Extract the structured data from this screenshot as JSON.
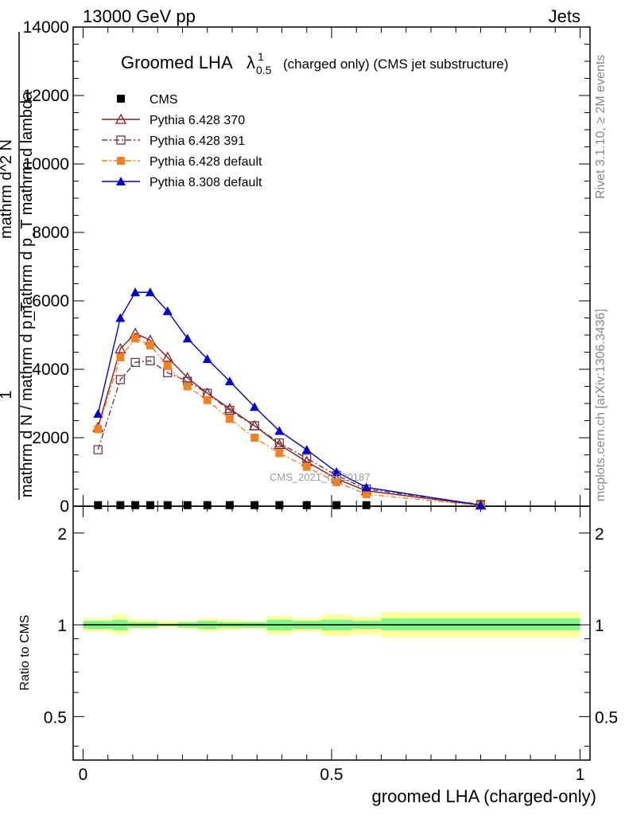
{
  "header": {
    "left": "13000 GeV pp",
    "right": "Jets"
  },
  "title": {
    "main": "Groomed LHA",
    "symbol": "λ",
    "sup": "1",
    "sub": "0.5",
    "detail": "(charged only) (CMS jet substructure)"
  },
  "side_labels": {
    "rivet": "Rivet 3.1.10, ≥ 2M events",
    "mcplots": "mcplots.cern.ch [arXiv:1306.3436]"
  },
  "watermark": "CMS_2021_I1920187",
  "ylabel_main": {
    "numerator_one": "1",
    "denominator": "mathrm d N / mathrm d p_T",
    "fraction_numerator": "mathrm d^2 N",
    "fraction_denominator": "mathrm d p_T mathrm d lambda"
  },
  "ylabel_ratio": "Ratio to CMS",
  "xlabel": "groomed LHA (charged-only)",
  "colors": {
    "cms": "#000000",
    "p370": "#8b1a1a",
    "p391": "#6b3a44",
    "p6def": "#f58020",
    "p8def": "#0000cc",
    "band_inner": "#7ff58a",
    "band_outer": "#ffff99"
  },
  "chart_data": [
    {
      "type": "line",
      "x": [
        0.03,
        0.075,
        0.105,
        0.135,
        0.17,
        0.21,
        0.25,
        0.295,
        0.345,
        0.395,
        0.45,
        0.51,
        0.57,
        0.8
      ],
      "xlim": [
        -0.02,
        1.02
      ],
      "ylim": [
        0,
        14000
      ],
      "yticks": [
        0,
        2000,
        4000,
        6000,
        8000,
        10000,
        12000,
        14000
      ],
      "ytick_labels": [
        "0",
        "2000",
        "4000",
        "6000",
        "8000",
        "10000",
        "12000",
        "14000"
      ],
      "series": [
        {
          "name": "CMS",
          "key": "cms",
          "marker": "square-filled",
          "line": "none",
          "values": [
            30,
            30,
            30,
            30,
            30,
            30,
            30,
            30,
            30,
            30,
            30,
            30,
            30,
            30
          ]
        },
        {
          "name": "Pythia 6.428 370",
          "key": "p370",
          "marker": "triangle-open",
          "line": "solid",
          "values": [
            2300,
            4600,
            5050,
            4850,
            4350,
            3750,
            3300,
            2850,
            2350,
            1800,
            1300,
            800,
            450,
            30
          ]
        },
        {
          "name": "Pythia 6.428 391",
          "key": "p391",
          "marker": "square-open",
          "line": "dashdot",
          "values": [
            1650,
            3700,
            4200,
            4250,
            3900,
            3650,
            3300,
            2800,
            2350,
            1850,
            1400,
            900,
            500,
            50
          ]
        },
        {
          "name": "Pythia 6.428 default",
          "key": "p6def",
          "marker": "square-filled",
          "line": "dashdot",
          "values": [
            2250,
            4350,
            4900,
            4700,
            4100,
            3500,
            3100,
            2550,
            2000,
            1550,
            1150,
            700,
            350,
            20
          ]
        },
        {
          "name": "Pythia 8.308 default",
          "key": "p8def",
          "marker": "triangle-filled",
          "line": "solid",
          "values": [
            2700,
            5500,
            6250,
            6250,
            5700,
            4900,
            4300,
            3650,
            2900,
            2200,
            1650,
            1000,
            550,
            30
          ]
        }
      ]
    },
    {
      "type": "area",
      "ylim": [
        0.36,
        2.45
      ],
      "yticks": [
        0.5,
        1,
        2
      ],
      "ytick_labels": [
        "0.5",
        "1",
        "2"
      ],
      "xticks": [
        0,
        0.5,
        1
      ],
      "xtick_labels": [
        "0",
        "0.5",
        "1"
      ],
      "bins": [
        {
          "lo": 0.0,
          "hi": 0.06,
          "inner": [
            0.97,
            1.03
          ],
          "outer": [
            0.95,
            1.05
          ]
        },
        {
          "lo": 0.06,
          "hi": 0.09,
          "inner": [
            0.96,
            1.04
          ],
          "outer": [
            0.93,
            1.08
          ]
        },
        {
          "lo": 0.09,
          "hi": 0.12,
          "inner": [
            0.98,
            1.02
          ],
          "outer": [
            0.97,
            1.04
          ]
        },
        {
          "lo": 0.12,
          "hi": 0.15,
          "inner": [
            0.98,
            1.02
          ],
          "outer": [
            0.97,
            1.04
          ]
        },
        {
          "lo": 0.15,
          "hi": 0.19,
          "inner": [
            0.99,
            1.01
          ],
          "outer": [
            0.98,
            1.03
          ]
        },
        {
          "lo": 0.19,
          "hi": 0.23,
          "inner": [
            0.98,
            1.02
          ],
          "outer": [
            0.97,
            1.03
          ]
        },
        {
          "lo": 0.23,
          "hi": 0.27,
          "inner": [
            0.97,
            1.03
          ],
          "outer": [
            0.95,
            1.05
          ]
        },
        {
          "lo": 0.27,
          "hi": 0.32,
          "inner": [
            0.98,
            1.02
          ],
          "outer": [
            0.96,
            1.04
          ]
        },
        {
          "lo": 0.32,
          "hi": 0.37,
          "inner": [
            0.98,
            1.02
          ],
          "outer": [
            0.97,
            1.03
          ]
        },
        {
          "lo": 0.37,
          "hi": 0.42,
          "inner": [
            0.96,
            1.04
          ],
          "outer": [
            0.93,
            1.07
          ]
        },
        {
          "lo": 0.42,
          "hi": 0.48,
          "inner": [
            0.97,
            1.03
          ],
          "outer": [
            0.95,
            1.05
          ]
        },
        {
          "lo": 0.48,
          "hi": 0.54,
          "inner": [
            0.96,
            1.04
          ],
          "outer": [
            0.92,
            1.08
          ]
        },
        {
          "lo": 0.54,
          "hi": 0.6,
          "inner": [
            0.97,
            1.03
          ],
          "outer": [
            0.93,
            1.06
          ]
        },
        {
          "lo": 0.6,
          "hi": 1.0,
          "inner": [
            0.96,
            1.05
          ],
          "outer": [
            0.91,
            1.1
          ]
        }
      ]
    }
  ]
}
